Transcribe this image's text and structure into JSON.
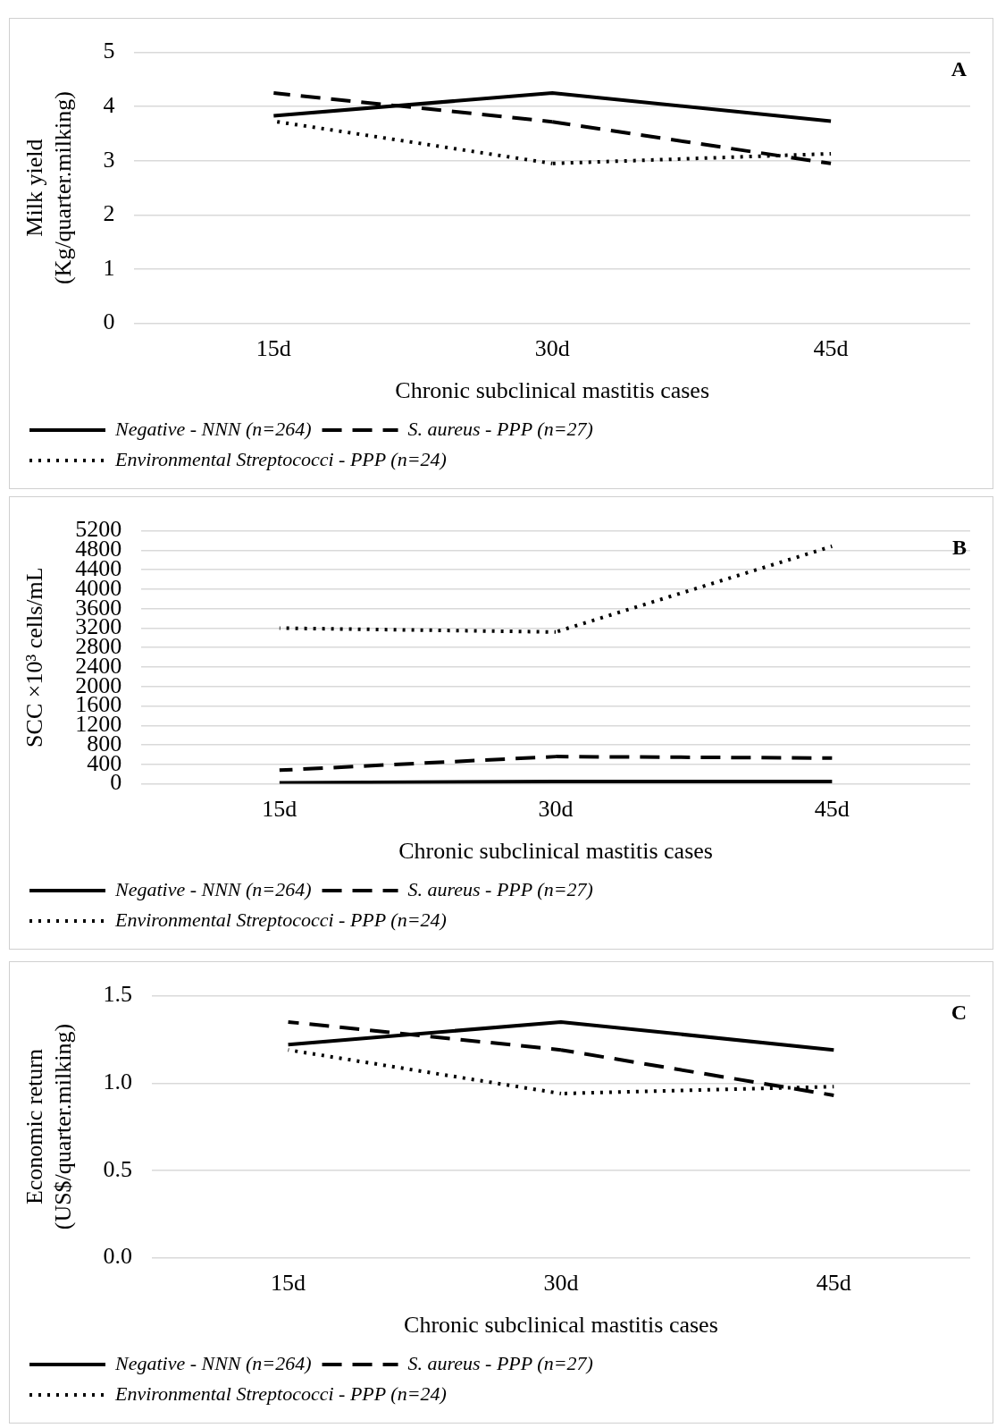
{
  "chart_data": [
    {
      "type": "line",
      "ylabel": "Milk yield (Kg/quarter.milking)",
      "xlabel": "Chronic subclinical mastitis cases",
      "categories": [
        "15d",
        "30d",
        "45d"
      ],
      "series": [
        {
          "name": "Negative - NNN (n=264)",
          "color": "#000000",
          "line_style": "solid",
          "values": [
            3.83,
            4.25,
            3.73
          ]
        },
        {
          "name": "S. aureus - PPP (n=27)",
          "color": "#000000",
          "line_style": "dashed",
          "values": [
            4.25,
            3.72,
            2.95
          ]
        },
        {
          "name": "Environmental Streptococci - PPP (n=24)",
          "color": "#000000",
          "line_style": "dotted",
          "values": [
            3.73,
            2.95,
            3.13
          ]
        }
      ],
      "ylim": [
        0,
        5
      ],
      "yticks": [
        0,
        1,
        2,
        3,
        4,
        5
      ],
      "grid": "y",
      "legend": "bottom",
      "marker": "none",
      "annotations": [
        "A"
      ]
    },
    {
      "type": "line",
      "ylabel": "SCC ×10³ cells/mL",
      "xlabel": "Chronic subclinical mastitis cases",
      "categories": [
        "15d",
        "30d",
        "45d"
      ],
      "series": [
        {
          "name": "Negative - NNN (n=264)",
          "color": "#000000",
          "line_style": "solid",
          "values": [
            20,
            50,
            50
          ]
        },
        {
          "name": "S. aureus - PPP (n=27)",
          "color": "#000000",
          "line_style": "dashed",
          "values": [
            280,
            560,
            530
          ]
        },
        {
          "name": "Environmental Streptococci - PPP (n=24)",
          "color": "#000000",
          "line_style": "dotted",
          "values": [
            3200,
            3120,
            4880
          ]
        }
      ],
      "ylim": [
        0,
        5200
      ],
      "yticks": [
        0,
        400,
        800,
        1200,
        1600,
        2000,
        2400,
        2800,
        3200,
        3600,
        4000,
        4400,
        4800,
        5200
      ],
      "grid": "y",
      "legend": "bottom",
      "marker": "none",
      "annotations": [
        "B"
      ]
    },
    {
      "type": "line",
      "ylabel": "Economic return (US$/quarter.milking)",
      "xlabel": "Chronic subclinical mastitis cases",
      "categories": [
        "15d",
        "30d",
        "45d"
      ],
      "series": [
        {
          "name": "Negative - NNN (n=264)",
          "color": "#000000",
          "line_style": "solid",
          "values": [
            1.22,
            1.35,
            1.19
          ]
        },
        {
          "name": "S. aureus - PPP (n=27)",
          "color": "#000000",
          "line_style": "dashed",
          "values": [
            1.35,
            1.19,
            0.93
          ]
        },
        {
          "name": "Environmental Streptococci - PPP (n=24)",
          "color": "#000000",
          "line_style": "dotted",
          "values": [
            1.19,
            0.94,
            0.98
          ]
        }
      ],
      "ylim": [
        0,
        1.5
      ],
      "yticks": [
        {
          "value": 0,
          "label": "0.0"
        },
        {
          "value": 0.5,
          "label": "0.5"
        },
        {
          "value": 1,
          "label": "1.0"
        },
        {
          "value": 1.5,
          "label": "1.5"
        }
      ],
      "grid": "y",
      "legend": "bottom",
      "marker": "none",
      "annotations": [
        "C"
      ]
    }
  ]
}
